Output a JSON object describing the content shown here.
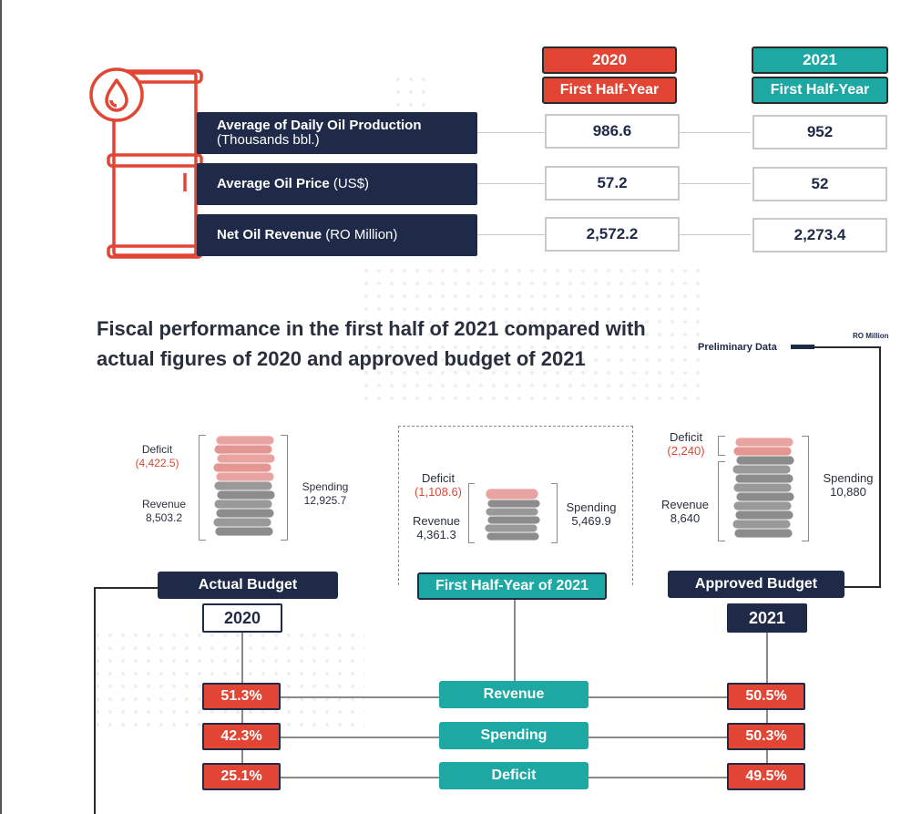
{
  "oil_table": {
    "year_2020": "2020",
    "year_2021": "2021",
    "period_2020": "First Half-Year",
    "period_2021": "First Half-Year",
    "rows": [
      {
        "label_bold": "Average of Daily Oil Production",
        "label_rest": "(Thousands bbl.)",
        "v2020": "986.6",
        "v2021": "952"
      },
      {
        "label_bold": "Average Oil Price",
        "label_rest": " (US$)",
        "v2020": "57.2",
        "v2021": "52"
      },
      {
        "label_bold": "Net Oil Revenue",
        "label_rest": " (RO Million)",
        "v2020": "2,572.2",
        "v2021": "2,273.4"
      }
    ]
  },
  "fiscal": {
    "title_line1": "Fiscal performance in the first half of 2021 compared with",
    "title_line2": "actual figures of 2020 and approved budget of 2021",
    "preliminary": "Preliminary Data",
    "unit": "RO Million",
    "actual": {
      "deficit_label": "Deficit",
      "deficit_value": "(4,422.5)",
      "revenue_label": "Revenue",
      "revenue_value": "8,503.2",
      "spending_label": "Spending",
      "spending_value": "12,925.7",
      "name": "Actual Budget",
      "year": "2020"
    },
    "half": {
      "deficit_label": "Deficit",
      "deficit_value": "(1,108.6)",
      "revenue_label": "Revenue",
      "revenue_value": "4,361.3",
      "spending_label": "Spending",
      "spending_value": "5,469.9",
      "name": "First Half-Year of 2021"
    },
    "approved": {
      "deficit_label": "Deficit",
      "deficit_value": "(2,240)",
      "revenue_label": "Revenue",
      "revenue_value": "8,640",
      "spending_label": "Spending",
      "spending_value": "10,880",
      "name": "Approved Budget",
      "year": "2021"
    },
    "comparison": [
      {
        "metric": "Revenue",
        "vs2020": "51.3%",
        "vs2021": "50.5%"
      },
      {
        "metric": "Spending",
        "vs2020": "42.3%",
        "vs2021": "50.3%"
      },
      {
        "metric": "Deficit",
        "vs2020": "25.1%",
        "vs2021": "49.5%"
      }
    ]
  },
  "colors": {
    "navy": "#1e2a47",
    "red": "#e24534",
    "teal": "#1ea8a4",
    "coin_pink": "#e9a3a0",
    "coin_gray": "#8c8c8c"
  },
  "icons": [
    "oil-barrel-icon",
    "oil-drop-icon",
    "coin-stack-icon"
  ]
}
